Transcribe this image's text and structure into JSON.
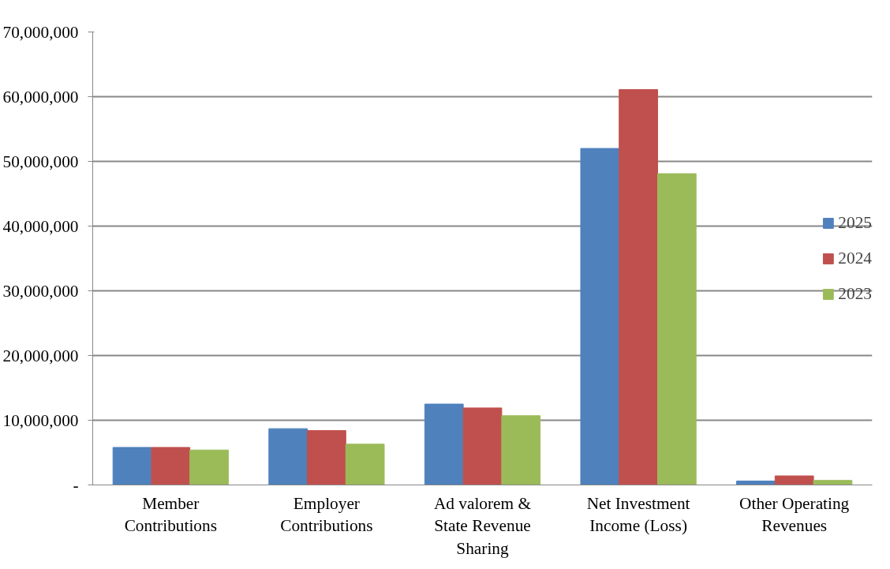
{
  "chart_data": {
    "type": "bar",
    "categories": [
      "Member Contributions",
      "Employer Contributions",
      "Ad valorem & State Revenue Sharing",
      "Net Investment Income (Loss)",
      "Other Operating Revenues"
    ],
    "series": [
      {
        "name": "2025",
        "color": "#4f81bd",
        "values": [
          5800000,
          8700000,
          12500000,
          52000000,
          600000
        ]
      },
      {
        "name": "2024",
        "color": "#c0504d",
        "values": [
          5800000,
          8400000,
          11900000,
          61100000,
          1400000
        ]
      },
      {
        "name": "2023",
        "color": "#9bbb59",
        "values": [
          5400000,
          6300000,
          10700000,
          48100000,
          700000
        ]
      }
    ],
    "ylim": [
      0,
      70000000
    ],
    "yticks": [
      {
        "value": 0,
        "label": "-"
      },
      {
        "value": 10000000,
        "label": "10,000,000"
      },
      {
        "value": 20000000,
        "label": "20,000,000"
      },
      {
        "value": 30000000,
        "label": "30,000,000"
      },
      {
        "value": 40000000,
        "label": "40,000,000"
      },
      {
        "value": 50000000,
        "label": "50,000,000"
      },
      {
        "value": 60000000,
        "label": "60,000,000"
      },
      {
        "value": 70000000,
        "label": "70,000,000"
      }
    ],
    "grid": "y",
    "legend": "right"
  }
}
